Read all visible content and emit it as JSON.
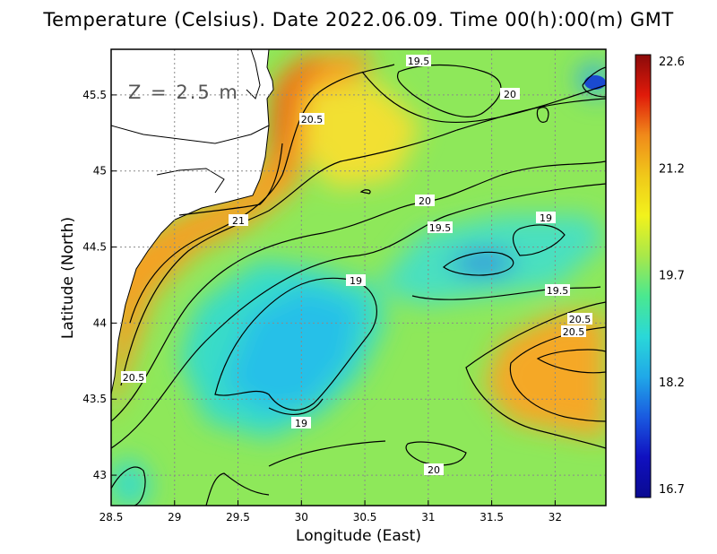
{
  "title": "Temperature (Celsius). Date 2022.06.09. Time 00(h):00(m) GMT",
  "depth_label": "Z = 2.5 m",
  "axes": {
    "xlabel": "Longitude (East)",
    "ylabel": "Latitude (North)",
    "x_ticks": [
      "28.5",
      "29",
      "29.5",
      "30",
      "30.5",
      "31",
      "31.5",
      "32"
    ],
    "y_ticks": [
      "43",
      "43.5",
      "44",
      "44.5",
      "45",
      "45.5"
    ],
    "xlim": [
      28.5,
      32.4
    ],
    "ylim": [
      42.8,
      45.8
    ],
    "grid": "dotted"
  },
  "colorbar": {
    "ticks": [
      "22.6",
      "21.2",
      "19.7",
      "18.2",
      "16.7"
    ],
    "colors": [
      "#8b0a0a",
      "#e01a0a",
      "#f08a1a",
      "#f0c81a",
      "#f2f21c",
      "#a8e84a",
      "#4ae890",
      "#2ad8d8",
      "#20a8e8",
      "#1a5ae0",
      "#1010c0",
      "#0a0a90"
    ]
  },
  "contour_labels": [
    "19.5",
    "20",
    "20.5",
    "20",
    "19.5",
    "19",
    "21",
    "19",
    "19.5",
    "20.5",
    "20.5",
    "19",
    "20.5",
    "20"
  ],
  "chart_data": {
    "type": "heatmap",
    "variable": "Temperature",
    "units": "Celsius",
    "date": "2022.06.09",
    "time": "00(h):00(m) GMT",
    "depth": "Z = 2.5 m",
    "value_range": [
      16.7,
      22.6
    ],
    "contour_levels": [
      19,
      19.5,
      20,
      20.5,
      21
    ]
  }
}
